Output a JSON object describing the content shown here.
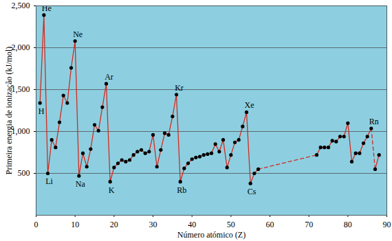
{
  "chart_data": {
    "type": "line",
    "x_label": "Número atómico (Z)",
    "y_label": "Primeira energia de ionização (kJ/mol)",
    "xlim": [
      0,
      90
    ],
    "xticks": [
      0,
      10,
      20,
      30,
      40,
      50,
      60,
      70,
      80,
      90
    ],
    "ylim": [
      0,
      2500
    ],
    "yticks": [
      500,
      1000,
      1500,
      2000,
      2500
    ],
    "grid": true,
    "series": [
      {
        "color": "#d42a1e",
        "line_style": "solid",
        "marker": "circle",
        "x": [
          1,
          2,
          3,
          4,
          5,
          6,
          7,
          8,
          9,
          10,
          11,
          12,
          13,
          14,
          15,
          16,
          17,
          18,
          19,
          20,
          21,
          22,
          23,
          24,
          25,
          26,
          27,
          28,
          29,
          30,
          31,
          32,
          33,
          34,
          35,
          36,
          37,
          38,
          39,
          40,
          41,
          42,
          43,
          44,
          45,
          46,
          47,
          48,
          49,
          50,
          51,
          52,
          53,
          54,
          55,
          56,
          57,
          58,
          72,
          73,
          74,
          75,
          76,
          77,
          78,
          79,
          80,
          81,
          82,
          83,
          84,
          85,
          86,
          87,
          87,
          88
        ],
        "values": [
          1340,
          2390,
          500,
          900,
          810,
          1110,
          1430,
          1340,
          1760,
          2080,
          470,
          740,
          580,
          790,
          1080,
          1010,
          1290,
          1570,
          400,
          570,
          620,
          660,
          640,
          660,
          720,
          760,
          780,
          740,
          760,
          960,
          580,
          780,
          980,
          960,
          1180,
          1440,
          400,
          560,
          620,
          670,
          690,
          700,
          720,
          730,
          740,
          850,
          760,
          900,
          570,
          720,
          870,
          900,
          1060,
          1230,
          380,
          500,
          550,
          null,
          720,
          810,
          810,
          810,
          890,
          880,
          940,
          940,
          1100,
          640,
          740,
          740,
          860,
          940,
          1037,
          null,
          550,
          720
        ]
      },
      {
        "color": "#d42a1e",
        "line_style": "dashed",
        "x": [
          57,
          72,
          73,
          86,
          87
        ],
        "values": [
          550,
          720,
          null,
          1037,
          550
        ]
      }
    ],
    "annotations": [
      {
        "text": "H",
        "x": 1
      },
      {
        "text": "He",
        "x": 2
      },
      {
        "text": "Li",
        "x": 3
      },
      {
        "text": "Ne",
        "x": 10
      },
      {
        "text": "Na",
        "x": 11
      },
      {
        "text": "Ar",
        "x": 18
      },
      {
        "text": "K",
        "x": 19
      },
      {
        "text": "Kr",
        "x": 36
      },
      {
        "text": "Rb",
        "x": 37
      },
      {
        "text": "Xe",
        "x": 54
      },
      {
        "text": "Cs",
        "x": 55
      },
      {
        "text": "Rn",
        "x": 86
      }
    ]
  }
}
